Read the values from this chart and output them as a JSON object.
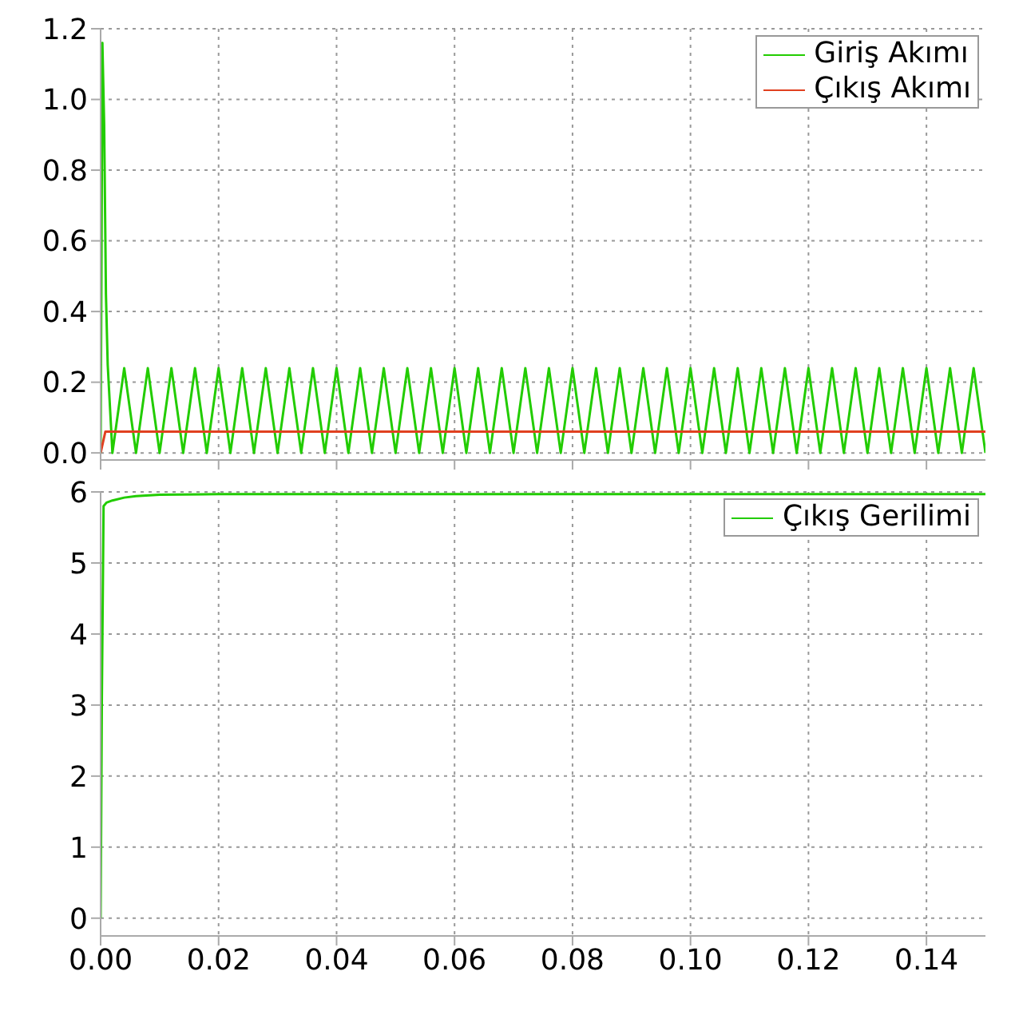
{
  "chart_data": [
    {
      "type": "line",
      "xlim": [
        0,
        0.15
      ],
      "xticks": [
        0,
        0.02,
        0.04,
        0.06,
        0.08,
        0.1,
        0.12,
        0.14
      ],
      "ylim": [
        -0.02,
        1.2
      ],
      "yticks": [
        {
          "value": 0,
          "label": "0.0"
        },
        {
          "value": 0.2,
          "label": "0.2"
        },
        {
          "value": 0.4,
          "label": "0.4"
        },
        {
          "value": 0.6,
          "label": "0.6"
        },
        {
          "value": 0.8,
          "label": "0.8"
        },
        {
          "value": 1,
          "label": "1.0"
        },
        {
          "value": 1.2,
          "label": "1.2"
        }
      ],
      "tick_labels": "y",
      "grid": true,
      "legend": "top right",
      "line_style": "solid",
      "series": [
        {
          "name": "Giriş Akımı",
          "color": "#22cc00",
          "x": [
            0,
            0.0003,
            0.0006,
            0.0009,
            0.0012,
            0.002,
            0.004,
            0.006,
            0.008,
            0.01,
            0.012,
            0.014,
            0.016,
            0.018,
            0.02,
            0.022,
            0.024,
            0.026,
            0.028,
            0.03,
            0.032,
            0.034,
            0.036,
            0.038,
            0.04,
            0.042,
            0.044,
            0.046,
            0.048,
            0.05,
            0.052,
            0.054,
            0.056,
            0.058,
            0.06,
            0.062,
            0.064,
            0.066,
            0.068,
            0.07,
            0.072,
            0.074,
            0.076,
            0.078,
            0.08,
            0.082,
            0.084,
            0.086,
            0.088,
            0.09,
            0.092,
            0.094,
            0.096,
            0.098,
            0.1,
            0.102,
            0.104,
            0.106,
            0.108,
            0.11,
            0.112,
            0.114,
            0.116,
            0.118,
            0.12,
            0.122,
            0.124,
            0.126,
            0.128,
            0.13,
            0.132,
            0.134,
            0.136,
            0.138,
            0.14,
            0.142,
            0.144,
            0.146,
            0.148,
            0.15
          ],
          "values": [
            0,
            1.16,
            0.93,
            0.45,
            0.25,
            0,
            0.24,
            0,
            0.24,
            0,
            0.24,
            0,
            0.24,
            0,
            0.24,
            0,
            0.24,
            0,
            0.24,
            0,
            0.24,
            0,
            0.24,
            0,
            0.24,
            0,
            0.24,
            0,
            0.24,
            0,
            0.24,
            0,
            0.24,
            0,
            0.24,
            0,
            0.24,
            0,
            0.24,
            0,
            0.24,
            0,
            0.24,
            0,
            0.24,
            0,
            0.24,
            0,
            0.24,
            0,
            0.24,
            0,
            0.24,
            0,
            0.24,
            0,
            0.24,
            0,
            0.24,
            0,
            0.24,
            0,
            0.24,
            0,
            0.24,
            0,
            0.24,
            0,
            0.24,
            0,
            0.24,
            0,
            0.24,
            0,
            0.24,
            0,
            0.24,
            0,
            0.24,
            0
          ]
        },
        {
          "name": "Çıkış Akımı",
          "color": "#e04020",
          "x": [
            0,
            0.0008,
            0.15
          ],
          "values": [
            0,
            0.06,
            0.06
          ]
        }
      ]
    },
    {
      "type": "line",
      "xlim": [
        0,
        0.15
      ],
      "xticks": [
        {
          "value": 0,
          "label": "0.00"
        },
        {
          "value": 0.02,
          "label": "0.02"
        },
        {
          "value": 0.04,
          "label": "0.04"
        },
        {
          "value": 0.06,
          "label": "0.06"
        },
        {
          "value": 0.08,
          "label": "0.08"
        },
        {
          "value": 0.1,
          "label": "0.10"
        },
        {
          "value": 0.12,
          "label": "0.12"
        },
        {
          "value": 0.14,
          "label": "0.14"
        }
      ],
      "ylim": [
        -0.25,
        6
      ],
      "yticks": [
        0,
        1,
        2,
        3,
        4,
        5,
        6
      ],
      "grid": true,
      "legend": "top right",
      "line_style": "solid",
      "series": [
        {
          "name": "Çıkış Gerilimi",
          "color": "#22cc00",
          "x": [
            0,
            0.0002,
            0.0005,
            0.001,
            0.002,
            0.004,
            0.006,
            0.01,
            0.02,
            0.05,
            0.1,
            0.15
          ],
          "values": [
            0,
            3,
            5.8,
            5.85,
            5.88,
            5.92,
            5.94,
            5.96,
            5.97,
            5.97,
            5.97,
            5.97
          ]
        }
      ]
    }
  ]
}
